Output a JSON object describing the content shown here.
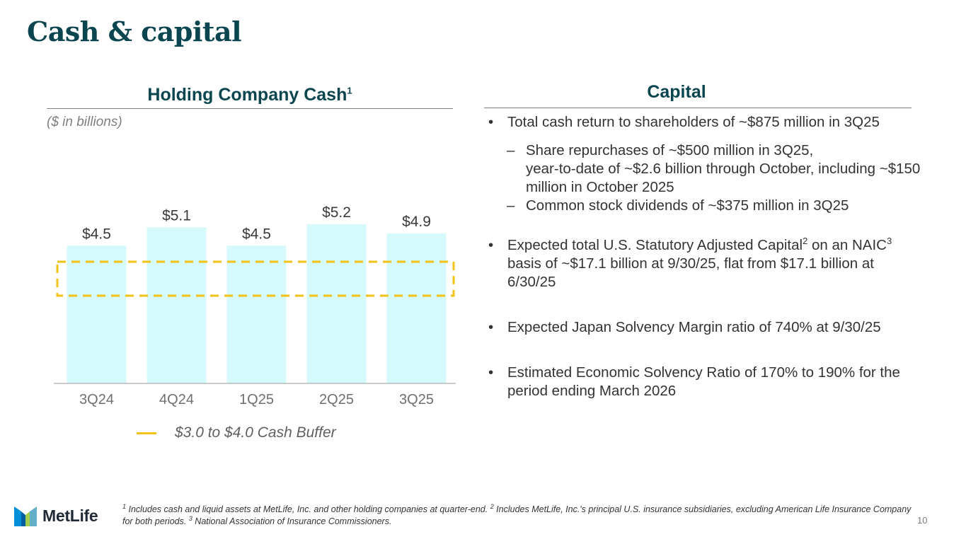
{
  "title": "Cash & capital",
  "left": {
    "heading": "Holding Company Cash",
    "heading_sup": "1",
    "unit_note": "($ in billions)",
    "legend_label": "$3.0 to $4.0 Cash Buffer"
  },
  "chart_data": {
    "type": "bar",
    "title": "Holding Company Cash",
    "categories": [
      "3Q24",
      "4Q24",
      "1Q25",
      "2Q25",
      "3Q25"
    ],
    "values": [
      4.5,
      5.1,
      4.5,
      5.2,
      4.9
    ],
    "value_labels": [
      "$4.5",
      "$5.1",
      "$4.5",
      "$5.2",
      "$4.9"
    ],
    "ylabel": "($ in billions)",
    "ylim": [
      0,
      5.2
    ],
    "band": {
      "low": 3.0,
      "high": 4.0,
      "label": "$3.0 to $4.0 Cash Buffer",
      "color": "#f2c316"
    },
    "bar_color": "#d6f9fc",
    "legend": "bottom-left"
  },
  "right": {
    "heading": "Capital",
    "b1": "Total cash return to shareholders of ~$875 million in 3Q25",
    "b1_sub1_l1": "Share repurchases of ~$500 million in 3Q25,",
    "b1_sub1_l2": "year-to-date of ~$2.6 billion through October, including ~$150 million in October 2025",
    "b1_sub2": "Common stock dividends of ~$375 million in 3Q25",
    "b2_a": "Expected total U.S. Statutory Adjusted Capital",
    "b2_sup1": "2",
    "b2_b": " on an NAIC",
    "b2_sup2": "3",
    "b2_c": " basis of ~$17.1 billion at 9/30/25, flat from $17.1 billion at 6/30/25",
    "b3": "Expected Japan Solvency Margin ratio of 740% at 9/30/25",
    "b4": "Estimated Economic Solvency Ratio of 170% to 190% for the period ending March 2026"
  },
  "footnote": {
    "n1": "1",
    "t1": " Includes cash and liquid assets at MetLife, Inc. and other holding companies at quarter-end. ",
    "n2": "2",
    "t2": " Includes MetLife, Inc.'s principal U.S. insurance subsidiaries, excluding American Life Insurance Company for both periods.  ",
    "n3": "3",
    "t3": " National Association of Insurance Commissioners."
  },
  "page_number": "10",
  "logo_text": "MetLife",
  "colors": {
    "brand": "#0b4650",
    "buffer": "#f2c316",
    "bar": "#d6f9fc"
  }
}
